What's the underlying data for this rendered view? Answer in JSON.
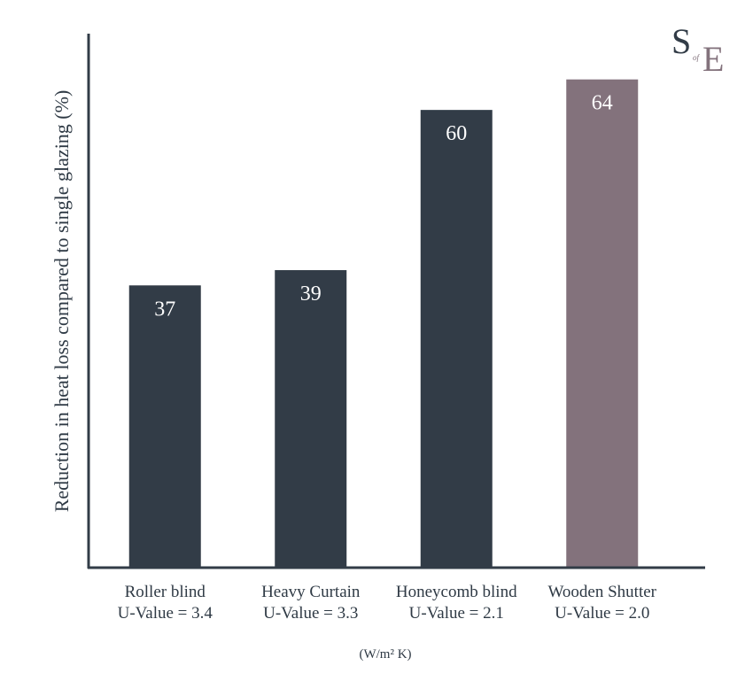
{
  "chart_data": {
    "type": "bar",
    "title": "",
    "ylabel": "Reduction in heat loss compared to single glazing (%)",
    "xlabel": "(W/m² K)",
    "categories": [
      "Roller blind",
      "Heavy Curtain",
      "Honeycomb blind",
      "Wooden Shutter"
    ],
    "sublabels": [
      "U-Value = 3.4",
      "U-Value = 3.3",
      "U-Value = 2.1",
      "U-Value = 2.0"
    ],
    "values": [
      37,
      39,
      60,
      64
    ],
    "colors": [
      "#323c47",
      "#323c47",
      "#323c47",
      "#83727c"
    ],
    "ylim": [
      0,
      70
    ],
    "grid": false
  },
  "logo": {
    "text": "S of E",
    "colors": [
      "#323c47",
      "#83727c"
    ]
  }
}
